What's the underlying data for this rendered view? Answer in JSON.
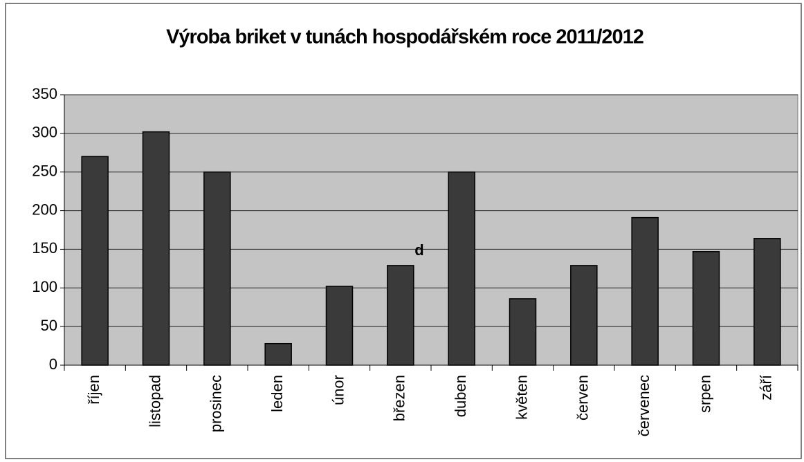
{
  "chart_data": {
    "type": "bar",
    "title": "Výroba briket v tunách hospodářském roce 2011/2012",
    "categories": [
      "říjen",
      "listopad",
      "prosinec",
      "leden",
      "únor",
      "březen",
      "duben",
      "květen",
      "červen",
      "červenec",
      "srpen",
      "září"
    ],
    "values": [
      270,
      302,
      250,
      28,
      102,
      129,
      250,
      86,
      129,
      191,
      147,
      164
    ],
    "color": "#3a3a3a",
    "ylim": [
      0,
      350
    ],
    "yticks": [
      0,
      50,
      100,
      150,
      200,
      250,
      300,
      350
    ],
    "grid": true,
    "annotations": [
      "d"
    ]
  }
}
